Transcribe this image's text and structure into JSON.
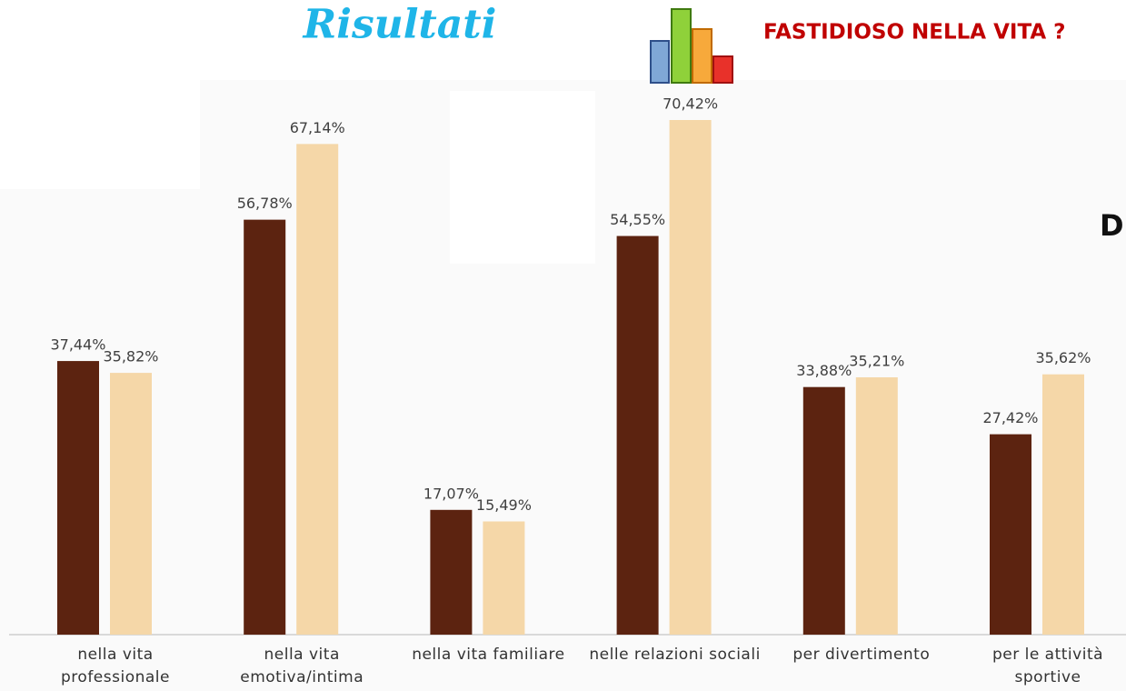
{
  "chart_data": {
    "type": "bar",
    "title": "Risultati",
    "subtitle": "FASTIDIOSO NELLA VITA ?",
    "annotations": [
      "D"
    ],
    "categories": [
      "nella vita professionale",
      "nella vita emotiva/intima",
      "nella vita familiare",
      "nelle relazioni sociali",
      "per divertimento",
      "per le attività sportive"
    ],
    "series": [
      {
        "color": "#5c2310",
        "values": [
          37.44,
          56.78,
          17.07,
          54.55,
          33.88,
          27.42
        ],
        "value_labels": [
          "37,44%",
          "56,78%",
          "17,07%",
          "54,55%",
          "33,88%",
          "27,42%"
        ]
      },
      {
        "color": "#f5d7a8",
        "values": [
          35.82,
          67.14,
          15.49,
          70.42,
          35.21,
          35.62
        ],
        "value_labels": [
          "35,82%",
          "67,14%",
          "15,49%",
          "70,42%",
          "35,21%",
          "35,62%"
        ]
      }
    ]
  }
}
